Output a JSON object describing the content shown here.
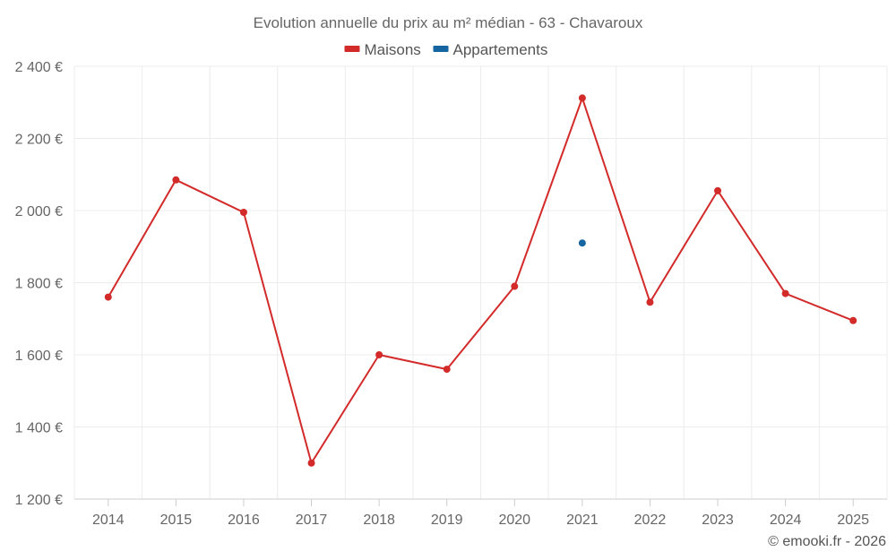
{
  "chart_data": {
    "type": "line",
    "title": "Evolution annuelle du prix au m² médian - 63 - Chavaroux",
    "categories": [
      "2014",
      "2015",
      "2016",
      "2017",
      "2018",
      "2019",
      "2020",
      "2021",
      "2022",
      "2023",
      "2024",
      "2025"
    ],
    "series": [
      {
        "name": "Maisons",
        "color": "#d32a2a",
        "values": [
          1760,
          2085,
          1995,
          1300,
          1600,
          1560,
          1790,
          2312,
          1746,
          2055,
          1770,
          1695
        ]
      },
      {
        "name": "Appartements",
        "color": "#1565a0",
        "values": [
          null,
          null,
          null,
          null,
          null,
          null,
          null,
          1910,
          null,
          null,
          null,
          null
        ]
      }
    ],
    "ylim": [
      1200,
      2400
    ],
    "yticks": [
      1200,
      1400,
      1600,
      1800,
      2000,
      2200,
      2400
    ],
    "ytick_labels": [
      "1 200 €",
      "1 400 €",
      "1 600 €",
      "1 800 €",
      "2 000 €",
      "2 200 €",
      "2 400 €"
    ],
    "grid": true,
    "legend": "top-center",
    "credit": "© emooki.fr - 2026"
  }
}
